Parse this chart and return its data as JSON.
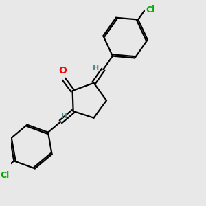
{
  "bg_color": "#e8e8e8",
  "bond_color": "#000000",
  "o_color": "#ff0000",
  "cl_color": "#00aa00",
  "h_color": "#4a8a8a",
  "lw": 1.6,
  "figsize": [
    3.0,
    3.0
  ],
  "dpi": 100,
  "xlim": [
    0,
    10
  ],
  "ylim": [
    0,
    10
  ]
}
